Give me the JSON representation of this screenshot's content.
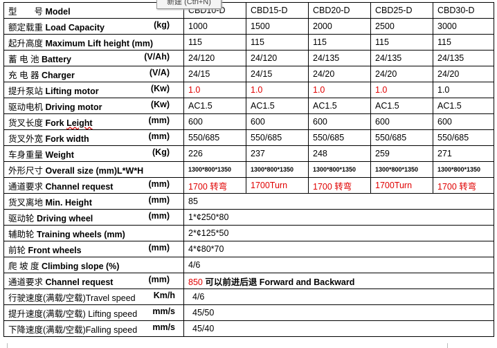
{
  "tooltip": "新建 (Ctrl+N)",
  "header": {
    "label_cn": "型　　号",
    "label_en": "Model",
    "models": [
      "CBD10-D",
      "CBD15-D",
      "CBD20-D",
      "CBD25-D",
      "CBD30-D"
    ]
  },
  "rows": [
    {
      "cn": "额定载重",
      "en": "Load Capacity",
      "unit": "(kg)",
      "values": [
        "1000",
        "1500",
        "2000",
        "2500",
        "3000"
      ]
    },
    {
      "cn": "起升高度",
      "en": "Maximum Lift height (mm)",
      "unit": "",
      "values": [
        "115",
        "115",
        "115",
        "115",
        "115"
      ]
    },
    {
      "cn": "蓄 电 池",
      "en": "Battery",
      "unit": "(V/Ah)",
      "values": [
        "24/120",
        "24/120",
        "24/135",
        "24/135",
        "24/135"
      ]
    },
    {
      "cn": "充 电 器",
      "en": "Charger",
      "unit": "(V/A)",
      "values": [
        "24/15",
        "24/15",
        "24/20",
        "24/20",
        "24/20"
      ]
    },
    {
      "cn": "提升泵站",
      "en": "Lifting motor",
      "unit": "(Kw)",
      "values": [
        "1.0",
        "1.0",
        "1.0",
        "1.0",
        "1.0"
      ],
      "red": [
        true,
        true,
        true,
        true,
        false
      ]
    },
    {
      "cn": "驱动电机",
      "en": "Driving motor",
      "unit": "(Kw)",
      "values": [
        "AC1.5",
        "AC1.5",
        "AC1.5",
        "AC1.5",
        "AC1.5"
      ]
    },
    {
      "cn": "货叉长度",
      "en": "Fork Leight",
      "unit": "(mm)",
      "values": [
        "600",
        "600",
        "600",
        "600",
        "600"
      ]
    },
    {
      "cn": "货叉外宽",
      "en": "Fork width",
      "unit": "(mm)",
      "values": [
        "550/685",
        "550/685",
        "550/685",
        "550/685",
        "550/685"
      ]
    },
    {
      "cn": "车身重量",
      "en": "Weight",
      "unit": "(Kg)",
      "values": [
        "226",
        "237",
        "248",
        "259",
        "271"
      ]
    },
    {
      "cn": "外形尺寸",
      "en": "Overall size (mm)L*W*H",
      "unit": "",
      "values": [
        "1300*800*1350",
        "1300*800*1350",
        "1300*800*1350",
        "1300*800*1350",
        "1300*800*1350"
      ],
      "small": true
    },
    {
      "cn": "通道要求",
      "en": "Channel request",
      "unit": "(mm)",
      "values": [
        "1700 转弯",
        "1700Turn",
        "1700 转弯",
        "1700Turn",
        "1700 转弯"
      ],
      "red": [
        true,
        true,
        true,
        true,
        true
      ]
    }
  ],
  "span_rows": [
    {
      "cn": "货叉离地",
      "en": "Min. Height",
      "unit": "(mm)",
      "value": "85"
    },
    {
      "cn": "驱动轮",
      "en": "Driving wheel",
      "unit": "(mm)",
      "value": "1*¢250*80"
    },
    {
      "cn": "辅助轮",
      "en": "Training wheels (mm)",
      "unit": "",
      "value": "2*¢125*50"
    },
    {
      "cn": "前轮",
      "en": "Front wheels",
      "unit": "(mm)",
      "value": "4*¢80*70"
    },
    {
      "cn": "爬 坡 度",
      "en": "Climbing slope (%)",
      "unit": "",
      "value": "4/6"
    },
    {
      "cn": "通道要求",
      "en": "Channel request",
      "unit": "(mm)",
      "value_red": "850",
      "value": " 可以前进后退 Forward and Backward"
    },
    {
      "cn": "行驶速度(满载/空载)Travel speed",
      "en": "",
      "unit": "Km/h",
      "value": "4/6"
    },
    {
      "cn": "提升速度(满载/空载) Lifting speed",
      "en": "",
      "unit": "mm/s",
      "value": "45/50"
    },
    {
      "cn": "下降速度(满载/空载)Falling speed",
      "en": "",
      "unit": "mm/s",
      "value": "45/40"
    }
  ]
}
